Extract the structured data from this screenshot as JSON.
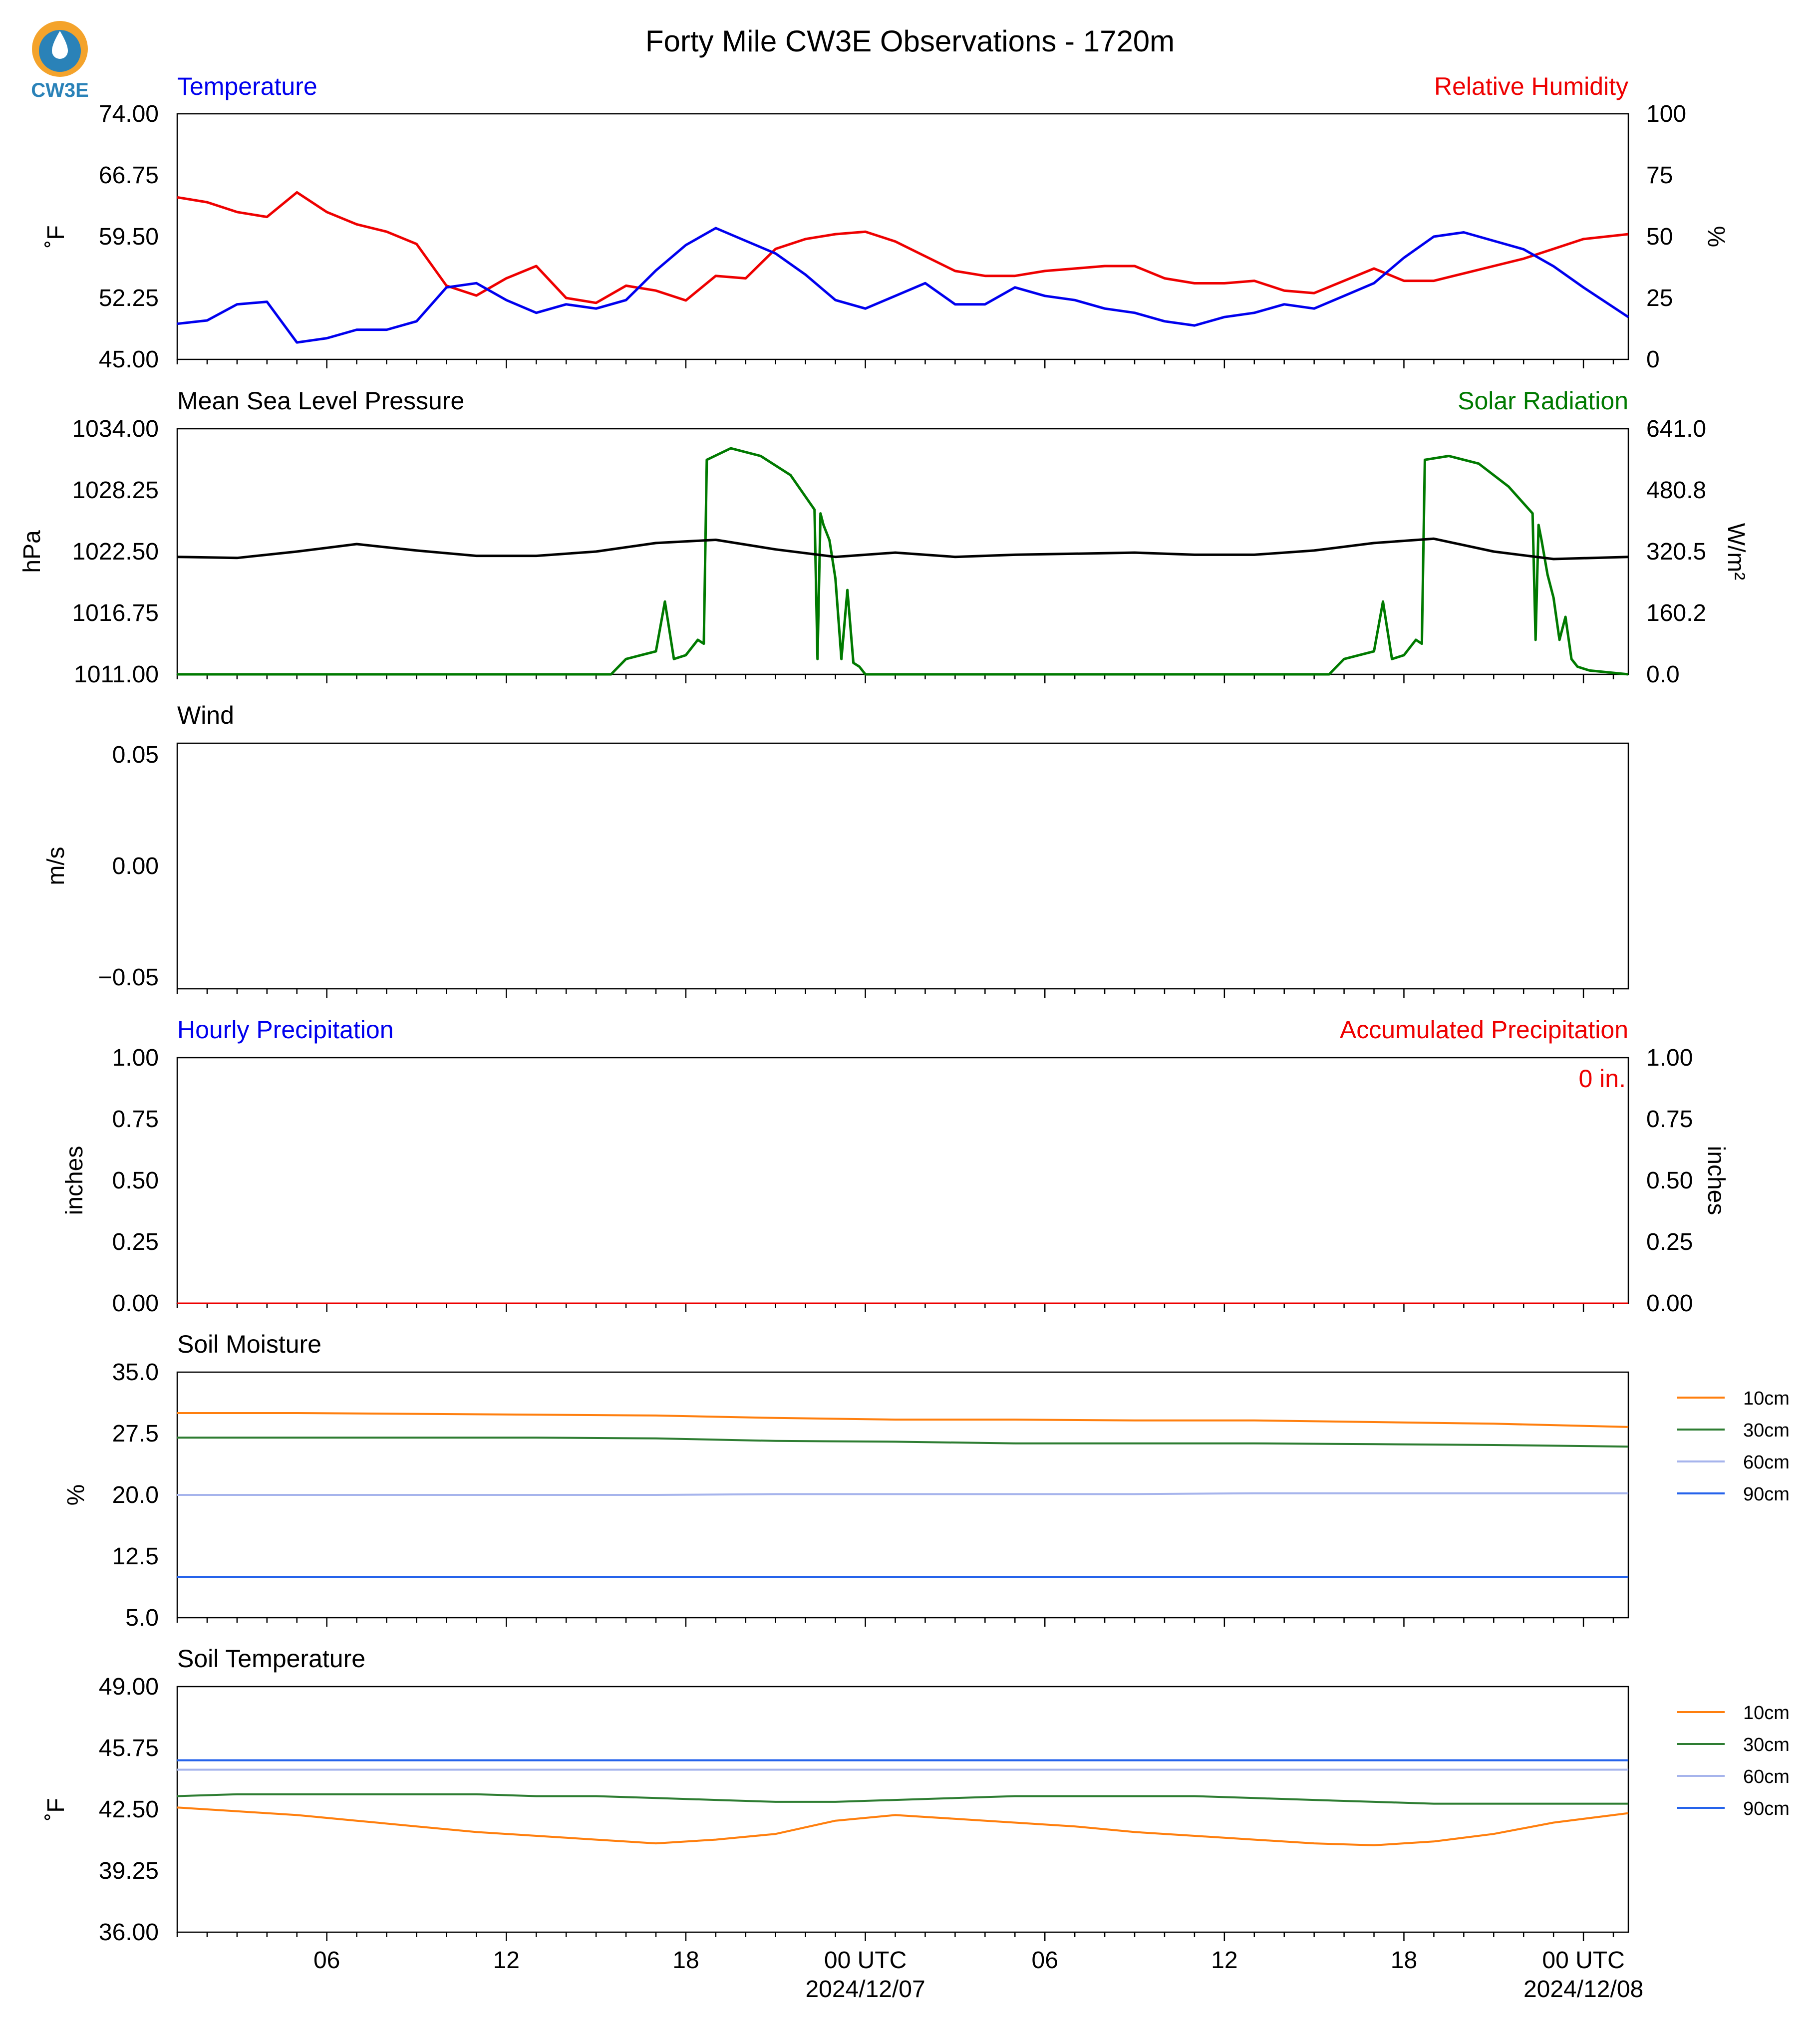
{
  "figure": {
    "title": "Forty Mile CW3E Observations - 1720m",
    "logo_text": "CW3E",
    "colors": {
      "temperature": "#0000ee",
      "humidity": "#ee0000",
      "pressure": "#000000",
      "solar": "#007a00",
      "accum": "#ee0000",
      "soil10": "#ff7f0e",
      "soil30": "#2e7d32",
      "soil60": "#a6b4ec",
      "soil90": "#2563eb"
    }
  },
  "time_axis": {
    "tick_labels": [
      "06",
      "12",
      "18",
      "00 UTC",
      "06",
      "12",
      "18",
      "00 UTC"
    ],
    "tick_hours": [
      6,
      12,
      18,
      24,
      30,
      36,
      42,
      48
    ],
    "date_labels": [
      "2024/12/07",
      "2024/12/08"
    ],
    "range_hours": [
      1,
      49.5
    ]
  },
  "panels": {
    "temp_rh": {
      "left_title": "Temperature",
      "right_title": "Relative Humidity",
      "left_unit": "˚F",
      "right_unit": "%",
      "left_ticks": [
        "45.00",
        "52.25",
        "59.50",
        "66.75",
        "74.00"
      ],
      "right_ticks": [
        "0",
        "25",
        "50",
        "75",
        "100"
      ]
    },
    "pressure_solar": {
      "left_title": "Mean Sea Level Pressure",
      "right_title": "Solar Radiation",
      "left_unit": "hPa",
      "right_unit": "W/m²",
      "left_ticks": [
        "1011.00",
        "1016.75",
        "1022.50",
        "1028.25",
        "1034.00"
      ],
      "right_ticks": [
        "0.0",
        "160.2",
        "320.5",
        "480.8",
        "641.0"
      ]
    },
    "wind": {
      "left_title": "Wind",
      "left_unit": "m/s",
      "left_ticks": [
        "−0.05",
        "0.00",
        "0.05"
      ]
    },
    "precip": {
      "left_title": "Hourly Precipitation",
      "right_title": "Accumulated Precipitation",
      "left_unit": "inches",
      "right_unit": "inches",
      "accum_label": "0 in.",
      "left_ticks": [
        "0.00",
        "0.25",
        "0.50",
        "0.75",
        "1.00"
      ],
      "right_ticks": [
        "0.00",
        "0.25",
        "0.50",
        "0.75",
        "1.00"
      ]
    },
    "soil_moisture": {
      "left_title": "Soil Moisture",
      "left_unit": "%",
      "left_ticks": [
        "5.0",
        "12.5",
        "20.0",
        "27.5",
        "35.0"
      ],
      "legend": [
        "10cm",
        "30cm",
        "60cm",
        "90cm"
      ]
    },
    "soil_temp": {
      "left_title": "Soil Temperature",
      "left_unit": "˚F",
      "left_ticks": [
        "36.00",
        "39.25",
        "42.50",
        "45.75",
        "49.00"
      ],
      "legend": [
        "10cm",
        "30cm",
        "60cm",
        "90cm"
      ]
    }
  },
  "chart_data": [
    {
      "type": "line",
      "title": "Temperature / Relative Humidity",
      "ylabel": "˚F",
      "y2label": "%",
      "ylim": [
        45,
        74
      ],
      "y2lim": [
        0,
        100
      ],
      "x_hours": [
        1,
        2,
        3,
        4,
        5,
        6,
        7,
        8,
        9,
        10,
        11,
        12,
        13,
        14,
        15,
        16,
        17,
        18,
        19,
        20,
        21,
        22,
        23,
        24,
        25,
        26,
        27,
        28,
        29,
        30,
        31,
        32,
        33,
        34,
        35,
        36,
        37,
        38,
        39,
        40,
        41,
        42,
        43,
        44,
        45,
        46,
        47,
        48,
        49.5
      ],
      "series": [
        {
          "name": "Temperature",
          "axis": "left",
          "values": [
            49.2,
            49.6,
            51.5,
            51.8,
            47.0,
            47.5,
            48.5,
            48.5,
            49.5,
            53.5,
            54.0,
            52.0,
            50.5,
            51.5,
            51.0,
            52.0,
            55.5,
            58.5,
            60.5,
            59.0,
            57.5,
            55.0,
            52.0,
            51.0,
            52.5,
            54.0,
            51.5,
            51.5,
            53.5,
            52.5,
            52.0,
            51.0,
            50.5,
            49.5,
            49.0,
            50.0,
            50.5,
            51.5,
            51.0,
            52.5,
            54.0,
            57.0,
            59.5,
            60.0,
            59.0,
            58.0,
            56.0,
            53.5,
            50.0
          ]
        },
        {
          "name": "Relative Humidity",
          "axis": "right",
          "values": [
            66,
            64,
            60,
            58,
            68,
            60,
            55,
            52,
            47,
            30,
            26,
            33,
            38,
            25,
            23,
            30,
            28,
            24,
            34,
            33,
            45,
            49,
            51,
            52,
            48,
            42,
            36,
            34,
            34,
            36,
            37,
            38,
            38,
            33,
            31,
            31,
            32,
            28,
            27,
            32,
            37,
            32,
            32,
            35,
            38,
            41,
            45,
            49,
            51
          ]
        }
      ]
    },
    {
      "type": "line",
      "title": "Mean Sea Level Pressure / Solar Radiation",
      "ylabel": "hPa",
      "y2label": "W/m²",
      "ylim": [
        1011,
        1034
      ],
      "y2lim": [
        0,
        641
      ],
      "series": [
        {
          "name": "Mean Sea Level Pressure",
          "axis": "left",
          "x_hours": [
            1,
            3,
            5,
            7,
            9,
            11,
            13,
            15,
            17,
            19,
            21,
            23,
            25,
            27,
            29,
            31,
            33,
            35,
            37,
            39,
            41,
            43,
            45,
            47,
            49.5
          ],
          "values": [
            1022.0,
            1021.9,
            1022.5,
            1023.2,
            1022.6,
            1022.1,
            1022.1,
            1022.5,
            1023.3,
            1023.6,
            1022.7,
            1022.0,
            1022.4,
            1022.0,
            1022.2,
            1022.3,
            1022.4,
            1022.2,
            1022.2,
            1022.6,
            1023.3,
            1023.7,
            1022.5,
            1021.8,
            1022.0
          ]
        },
        {
          "name": "Solar Radiation",
          "axis": "right",
          "x_hours": [
            1,
            15.5,
            16.0,
            16.5,
            17.0,
            17.3,
            17.6,
            18.0,
            18.4,
            18.6,
            18.7,
            19.5,
            20.5,
            21.5,
            22.3,
            22.4,
            22.5,
            22.6,
            22.8,
            23.0,
            23.2,
            23.4,
            23.6,
            23.8,
            24.0,
            25.0,
            39.5,
            40.0,
            40.5,
            41.0,
            41.3,
            41.6,
            42.0,
            42.4,
            42.6,
            42.7,
            43.5,
            44.5,
            45.5,
            46.3,
            46.4,
            46.5,
            46.6,
            46.8,
            47.0,
            47.2,
            47.4,
            47.6,
            47.8,
            48.2,
            49.5
          ],
          "values": [
            0,
            0,
            40,
            50,
            60,
            190,
            40,
            50,
            90,
            80,
            560,
            590,
            570,
            520,
            430,
            40,
            420,
            390,
            350,
            250,
            40,
            220,
            30,
            20,
            0,
            0,
            0,
            40,
            50,
            60,
            190,
            40,
            50,
            90,
            80,
            560,
            570,
            550,
            490,
            420,
            90,
            390,
            350,
            260,
            200,
            90,
            150,
            40,
            20,
            10,
            0
          ]
        }
      ]
    },
    {
      "type": "line",
      "title": "Wind",
      "ylabel": "m/s",
      "ylim": [
        -0.055,
        0.055
      ],
      "series": []
    },
    {
      "type": "line",
      "title": "Hourly Precipitation / Accumulated Precipitation",
      "ylabel": "inches",
      "y2label": "inches",
      "ylim": [
        0,
        1
      ],
      "y2lim": [
        0,
        1
      ],
      "x_hours": [
        1,
        49.5
      ],
      "series": [
        {
          "name": "Hourly Precipitation",
          "axis": "left",
          "values": [
            0,
            0
          ]
        },
        {
          "name": "Accumulated Precipitation",
          "axis": "right",
          "values": [
            0,
            0
          ]
        }
      ]
    },
    {
      "type": "line",
      "title": "Soil Moisture",
      "ylabel": "%",
      "ylim": [
        5,
        35
      ],
      "x_hours": [
        1,
        5,
        9,
        13,
        17,
        21,
        25,
        29,
        33,
        37,
        41,
        45,
        49.5
      ],
      "series": [
        {
          "name": "10cm",
          "values": [
            30.0,
            30.0,
            29.9,
            29.8,
            29.7,
            29.4,
            29.2,
            29.2,
            29.1,
            29.1,
            28.9,
            28.7,
            28.3
          ]
        },
        {
          "name": "30cm",
          "values": [
            27.0,
            27.0,
            27.0,
            27.0,
            26.9,
            26.6,
            26.5,
            26.3,
            26.3,
            26.3,
            26.2,
            26.1,
            25.9
          ]
        },
        {
          "name": "60cm",
          "values": [
            20.0,
            20.0,
            20.0,
            20.0,
            20.0,
            20.1,
            20.1,
            20.1,
            20.1,
            20.2,
            20.2,
            20.2,
            20.2
          ]
        },
        {
          "name": "90cm",
          "values": [
            10.0,
            10.0,
            10.0,
            10.0,
            10.0,
            10.0,
            10.0,
            10.0,
            10.0,
            10.0,
            10.0,
            10.0,
            10.0
          ]
        }
      ]
    },
    {
      "type": "line",
      "title": "Soil Temperature",
      "ylabel": "˚F",
      "ylim": [
        36,
        49
      ],
      "x_hours": [
        1,
        3,
        5,
        7,
        9,
        11,
        13,
        15,
        17,
        19,
        21,
        23,
        25,
        27,
        29,
        31,
        33,
        35,
        37,
        39,
        41,
        43,
        45,
        47,
        49.5
      ],
      "series": [
        {
          "name": "10cm",
          "values": [
            42.6,
            42.4,
            42.2,
            41.9,
            41.6,
            41.3,
            41.1,
            40.9,
            40.7,
            40.9,
            41.2,
            41.9,
            42.2,
            42.0,
            41.8,
            41.6,
            41.3,
            41.1,
            40.9,
            40.7,
            40.6,
            40.8,
            41.2,
            41.8,
            42.3
          ]
        },
        {
          "name": "30cm",
          "values": [
            43.2,
            43.3,
            43.3,
            43.3,
            43.3,
            43.3,
            43.2,
            43.2,
            43.1,
            43.0,
            42.9,
            42.9,
            43.0,
            43.1,
            43.2,
            43.2,
            43.2,
            43.2,
            43.1,
            43.0,
            42.9,
            42.8,
            42.8,
            42.8,
            42.8
          ]
        },
        {
          "name": "60cm",
          "values": [
            44.6,
            44.6,
            44.6,
            44.6,
            44.6,
            44.6,
            44.6,
            44.6,
            44.6,
            44.6,
            44.6,
            44.6,
            44.6,
            44.6,
            44.6,
            44.6,
            44.6,
            44.6,
            44.6,
            44.6,
            44.6,
            44.6,
            44.6,
            44.6,
            44.6
          ]
        },
        {
          "name": "90cm",
          "values": [
            45.1,
            45.1,
            45.1,
            45.1,
            45.1,
            45.1,
            45.1,
            45.1,
            45.1,
            45.1,
            45.1,
            45.1,
            45.1,
            45.1,
            45.1,
            45.1,
            45.1,
            45.1,
            45.1,
            45.1,
            45.1,
            45.1,
            45.1,
            45.1,
            45.1
          ]
        }
      ]
    }
  ]
}
